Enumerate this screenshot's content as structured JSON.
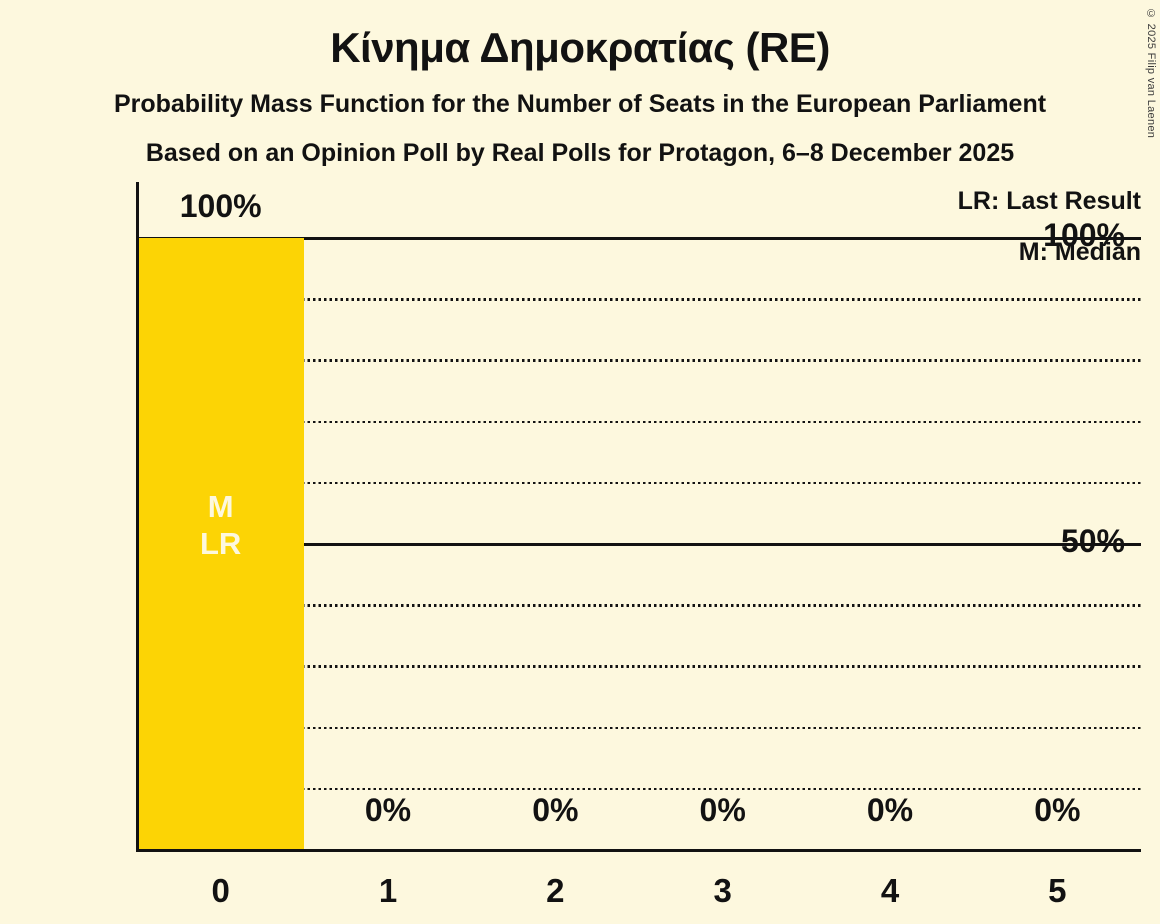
{
  "title": "Κίνημα Δημοκρατίας (RE)",
  "subtitle": "Probability Mass Function for the Number of Seats in the European Parliament",
  "poll_details": "Based on an Opinion Poll by Real Polls for Protagon, 6–8 December 2025",
  "copyright": "© 2025 Filip van Laenen",
  "legend": {
    "last_result": "LR: Last Result",
    "median": "M: Median"
  },
  "colors": {
    "background": "#FDF8DE",
    "bar": "#FCD405",
    "text": "#121212",
    "bar_annotation_text": "#FDF8DE"
  },
  "chart_data": {
    "type": "bar",
    "title": "Κίνημα Δημοκρατίας (RE)",
    "categories": [
      "0",
      "1",
      "2",
      "3",
      "4",
      "5"
    ],
    "values": [
      100,
      0,
      0,
      0,
      0,
      0
    ],
    "value_labels": [
      "100%",
      "0%",
      "0%",
      "0%",
      "0%",
      "0%"
    ],
    "ylim": [
      0,
      100
    ],
    "yticks": [
      {
        "value": 100,
        "label": "100%"
      },
      {
        "value": 50,
        "label": "50%"
      }
    ],
    "solid_gridlines": [
      100,
      50
    ],
    "dotted_gridlines": [
      90,
      80,
      70,
      60,
      40,
      30,
      20,
      10
    ],
    "annotations": [
      {
        "category_index": 0,
        "lines": [
          "M",
          "LR"
        ]
      }
    ],
    "legend_position": "top-right",
    "grid": "horizontal"
  }
}
